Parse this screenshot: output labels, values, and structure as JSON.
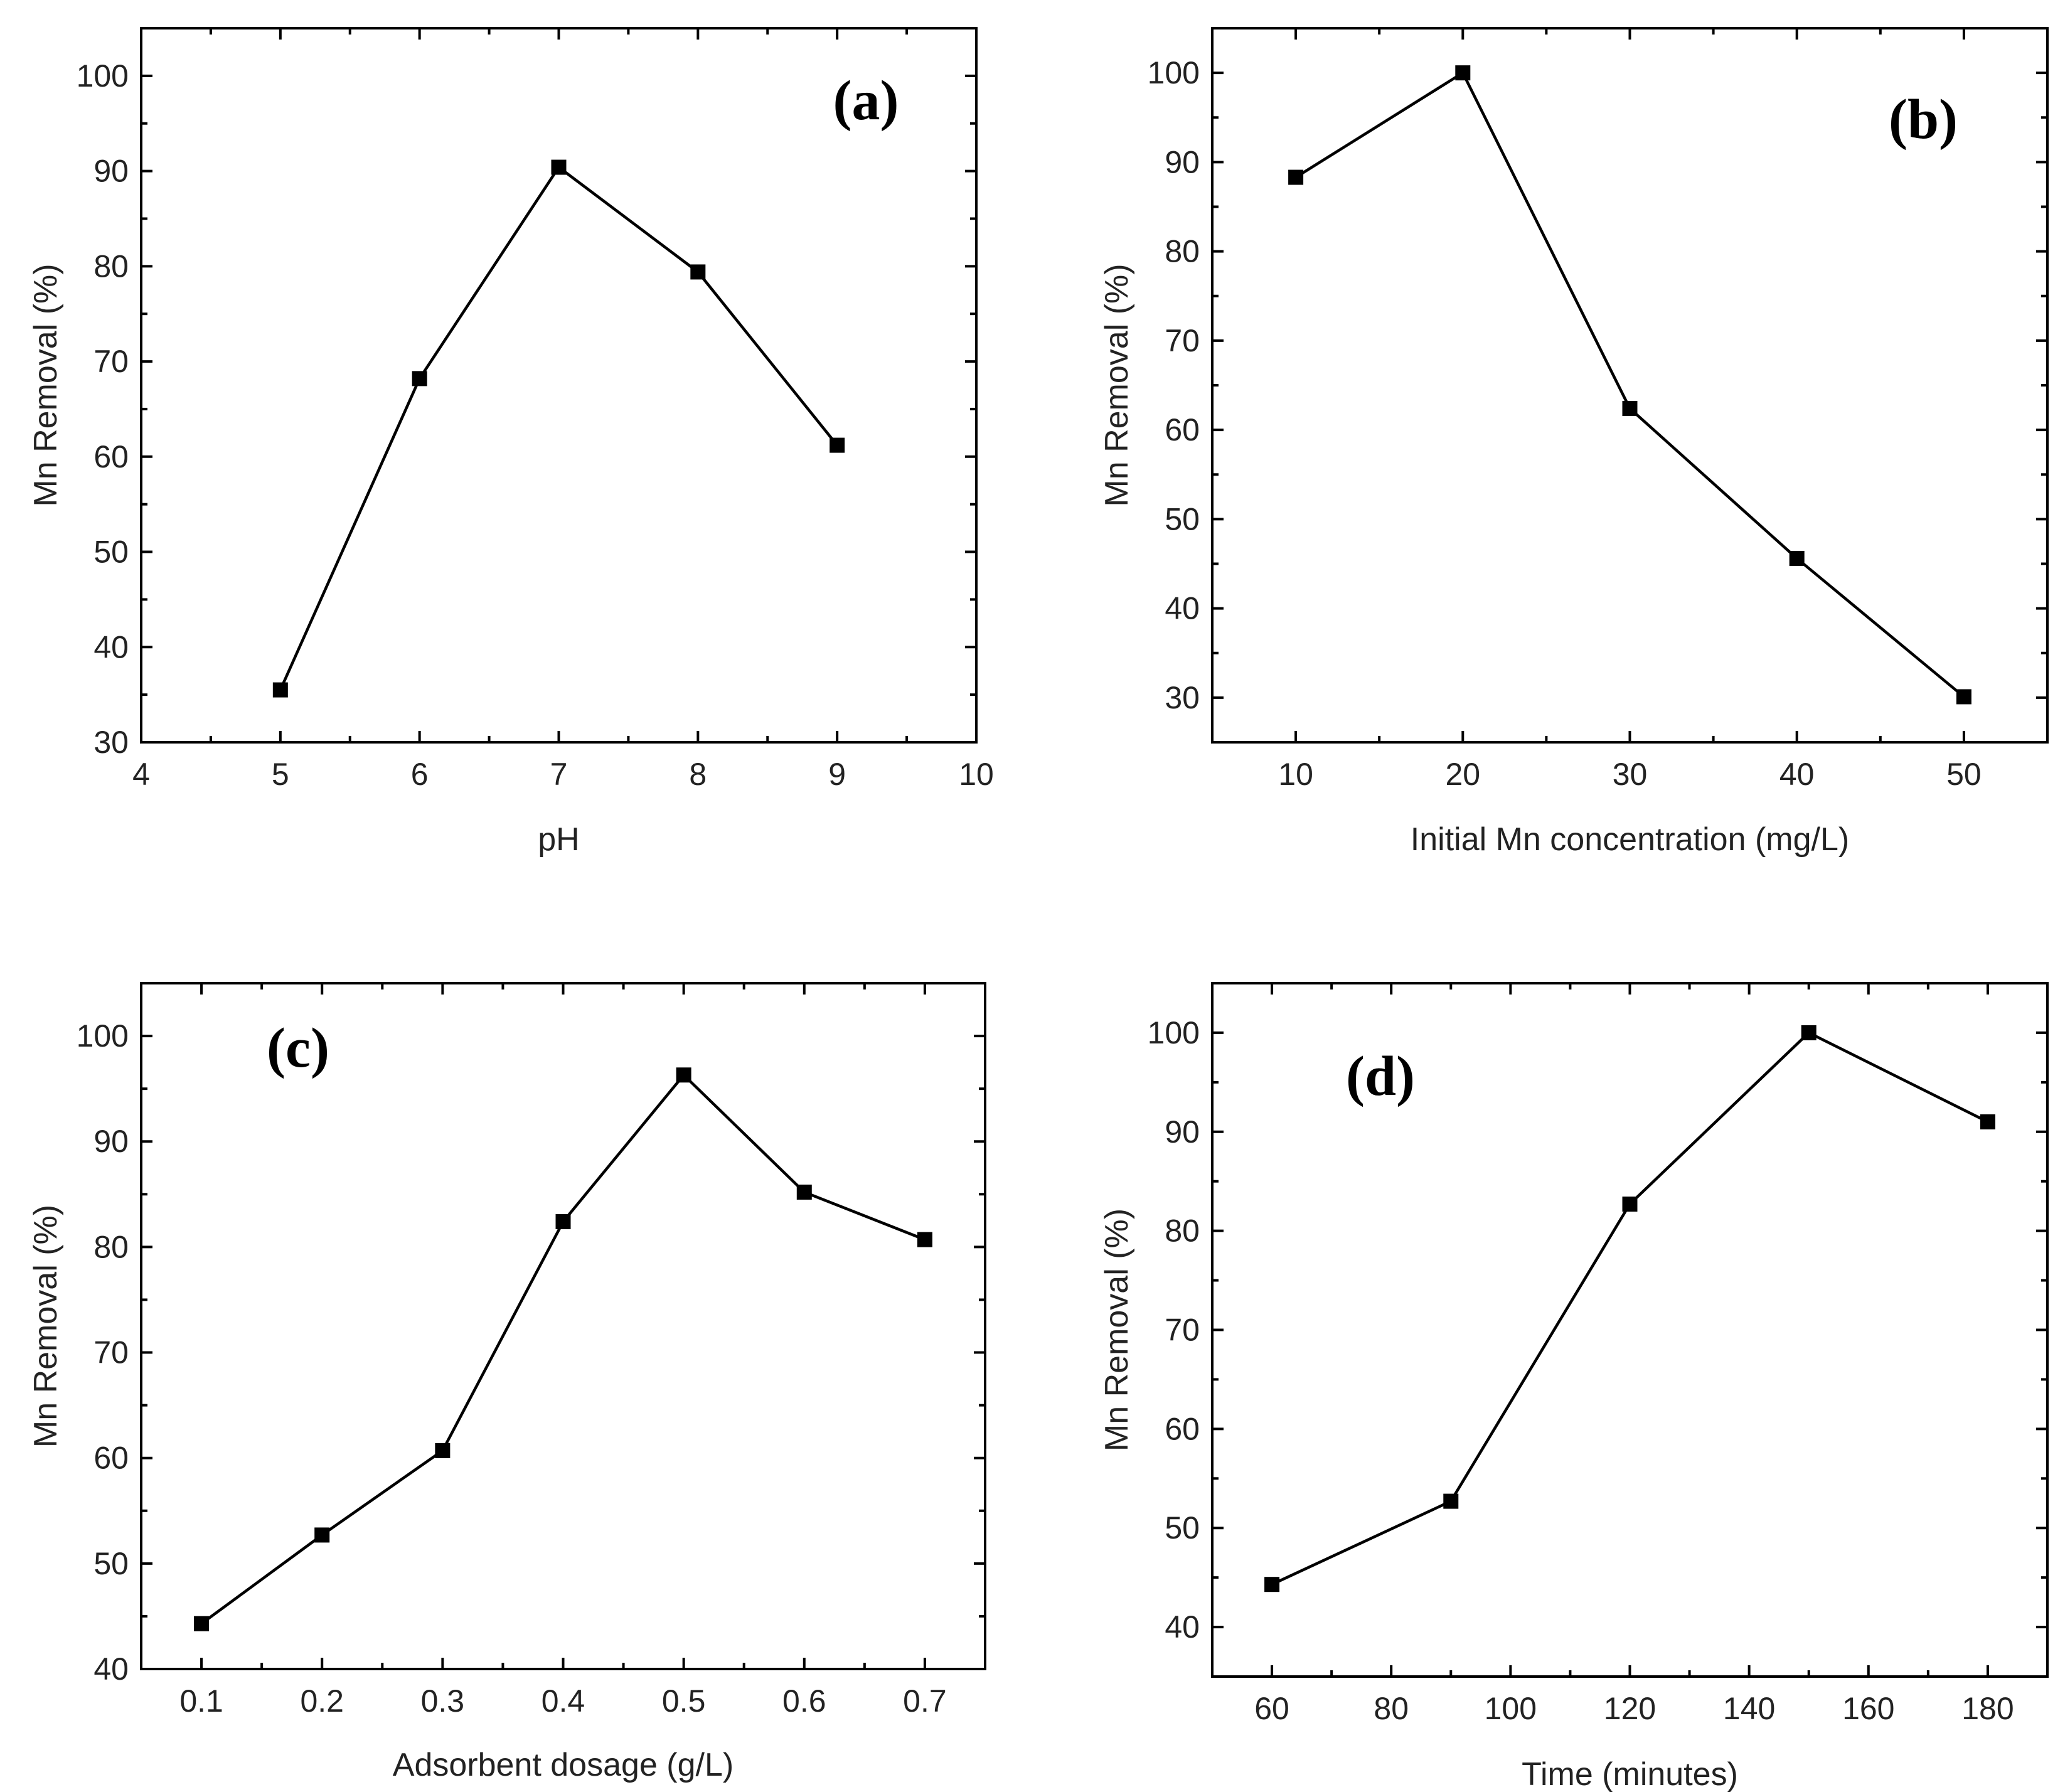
{
  "chart_data": [
    {
      "type": "line",
      "panel": "(a)",
      "xlabel": "pH",
      "ylabel": "Mn Removal (%)",
      "xlim": [
        4,
        10
      ],
      "ylim": [
        30,
        105
      ],
      "xticks": [
        4,
        5,
        6,
        7,
        8,
        9,
        10
      ],
      "xticklabels": [
        "4",
        "5",
        "6",
        "7",
        "8",
        "9",
        "10"
      ],
      "yticks": [
        30,
        40,
        50,
        60,
        70,
        80,
        90,
        100
      ],
      "yticklabels": [
        "30",
        "40",
        "50",
        "60",
        "70",
        "80",
        "90",
        "100"
      ],
      "minor_x": 0.5,
      "minor_y": 5,
      "x": [
        5,
        6,
        7,
        8,
        9
      ],
      "y": [
        35.5,
        68.2,
        90.4,
        79.4,
        61.2
      ],
      "marker": "square",
      "line_color": "#000000"
    },
    {
      "type": "line",
      "panel": "(b)",
      "xlabel": "Initial Mn concentration (mg/L)",
      "ylabel": "Mn Removal (%)",
      "xlim": [
        5,
        55
      ],
      "ylim": [
        25,
        105
      ],
      "xticks": [
        10,
        20,
        30,
        40,
        50
      ],
      "xticklabels": [
        "10",
        "20",
        "30",
        "40",
        "50"
      ],
      "yticks": [
        30,
        40,
        50,
        60,
        70,
        80,
        90,
        100
      ],
      "yticklabels": [
        "30",
        "40",
        "50",
        "60",
        "70",
        "80",
        "90",
        "100"
      ],
      "minor_x": 5,
      "minor_y": 5,
      "x": [
        10,
        20,
        30,
        40,
        50
      ],
      "y": [
        88.3,
        100.0,
        62.4,
        45.6,
        30.1
      ],
      "marker": "square",
      "line_color": "#000000"
    },
    {
      "type": "line",
      "panel": "(c)",
      "xlabel": "Adsorbent dosage (g/L)",
      "ylabel": "Mn Removal (%)",
      "xlim": [
        0.05,
        0.75
      ],
      "ylim": [
        40,
        105
      ],
      "xticks": [
        0.1,
        0.2,
        0.3,
        0.4,
        0.5,
        0.6,
        0.7
      ],
      "xticklabels": [
        "0.1",
        "0.2",
        "0.3",
        "0.4",
        "0.5",
        "0.6",
        "0.7"
      ],
      "yticks": [
        40,
        50,
        60,
        70,
        80,
        90,
        100
      ],
      "yticklabels": [
        "40",
        "50",
        "60",
        "70",
        "80",
        "90",
        "100"
      ],
      "minor_x": 0.05,
      "minor_y": 5,
      "x": [
        0.1,
        0.2,
        0.3,
        0.4,
        0.5,
        0.6,
        0.7
      ],
      "y": [
        44.3,
        52.7,
        60.7,
        82.4,
        96.3,
        85.2,
        80.7
      ],
      "marker": "square",
      "line_color": "#000000"
    },
    {
      "type": "line",
      "panel": "(d)",
      "xlabel": "Time (minutes)",
      "ylabel": "Mn Removal (%)",
      "xlim": [
        50,
        190
      ],
      "ylim": [
        35,
        105
      ],
      "xticks": [
        60,
        80,
        100,
        120,
        140,
        160,
        180
      ],
      "xticklabels": [
        "60",
        "80",
        "100",
        "120",
        "140",
        "160",
        "180"
      ],
      "yticks": [
        40,
        50,
        60,
        70,
        80,
        90,
        100
      ],
      "yticklabels": [
        "40",
        "50",
        "60",
        "70",
        "80",
        "90",
        "100"
      ],
      "minor_x": 10,
      "minor_y": 5,
      "x": [
        60,
        90,
        120,
        150,
        180
      ],
      "y": [
        44.3,
        52.7,
        82.7,
        100.0,
        91.0
      ],
      "marker": "square",
      "line_color": "#000000"
    }
  ]
}
